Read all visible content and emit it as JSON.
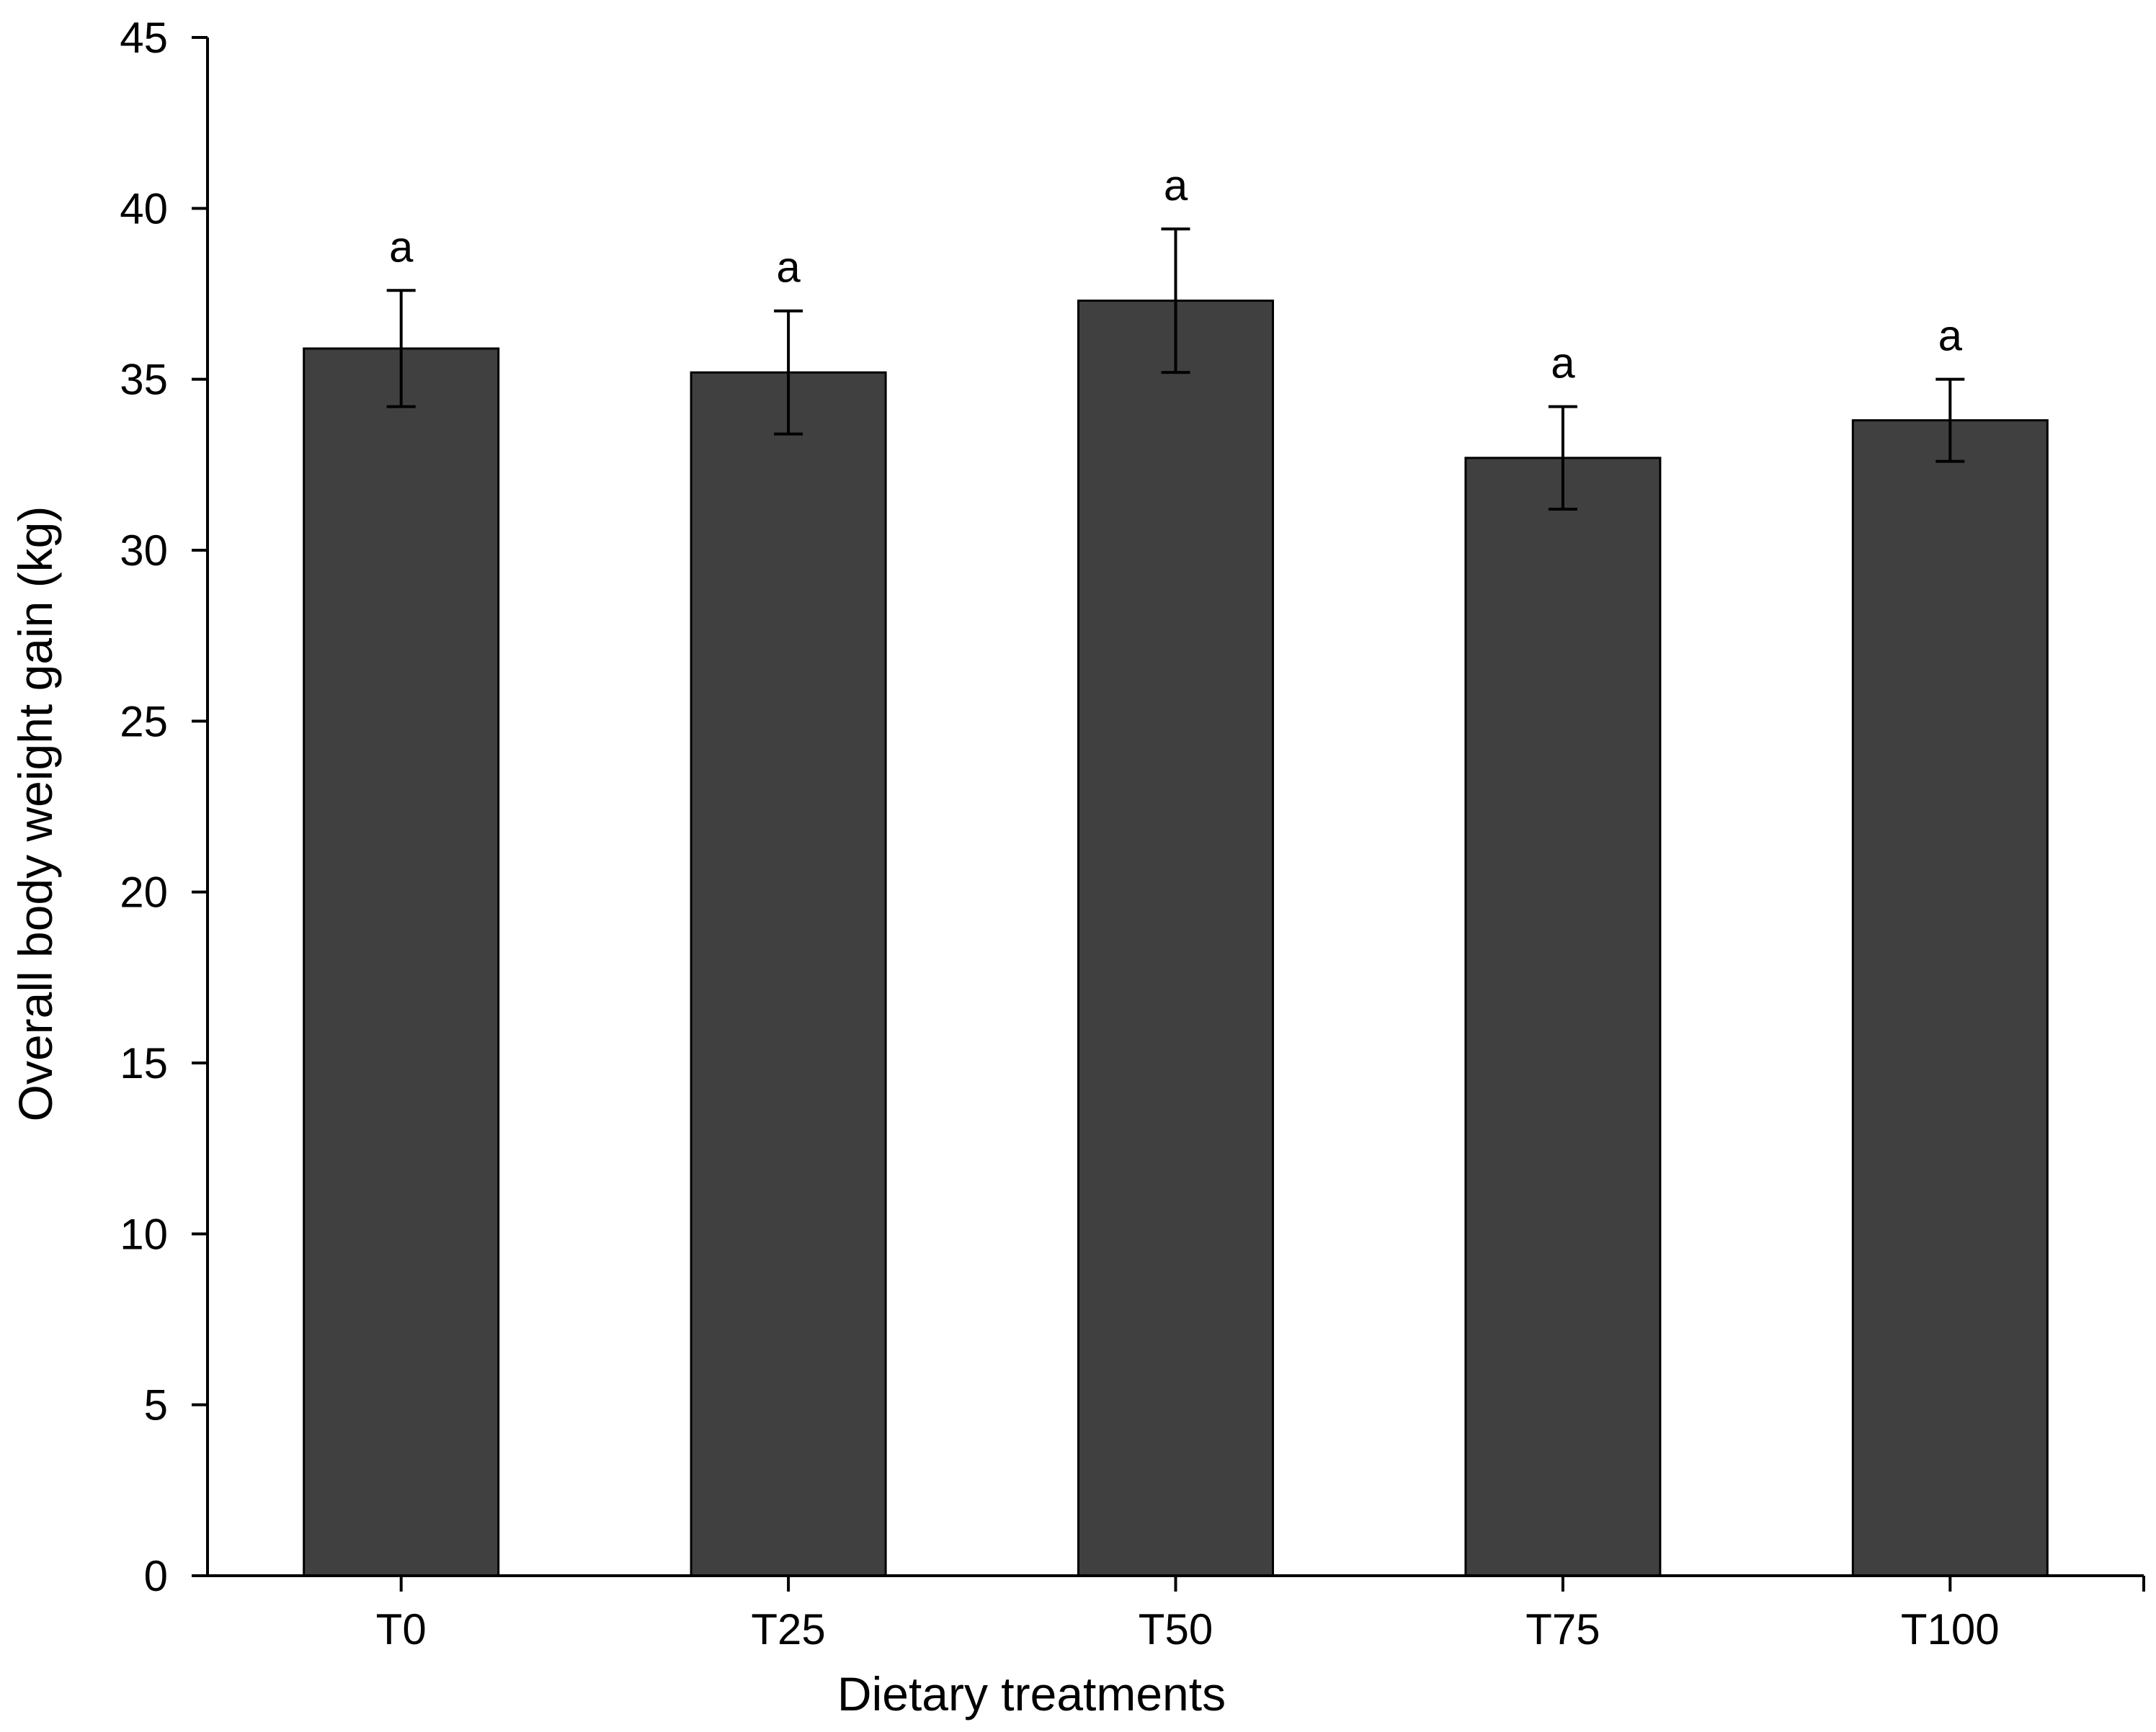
{
  "chart_data": {
    "type": "bar",
    "categories": [
      "T0",
      "T25",
      "T50",
      "T75",
      "T100"
    ],
    "values": [
      35.9,
      35.2,
      37.3,
      32.7,
      33.8
    ],
    "error_bars": [
      1.7,
      1.8,
      2.1,
      1.5,
      1.2
    ],
    "significance_labels": [
      "a",
      "a",
      "a",
      "a",
      "a"
    ],
    "title": "",
    "xlabel": "Dietary treatments",
    "ylabel": "Overall  body  weight  gain  (kg)",
    "ylim": [
      0,
      45
    ],
    "yticks": [
      0,
      5,
      10,
      15,
      20,
      25,
      30,
      35,
      40,
      45
    ],
    "grid": false,
    "bar_color": "#404040"
  }
}
